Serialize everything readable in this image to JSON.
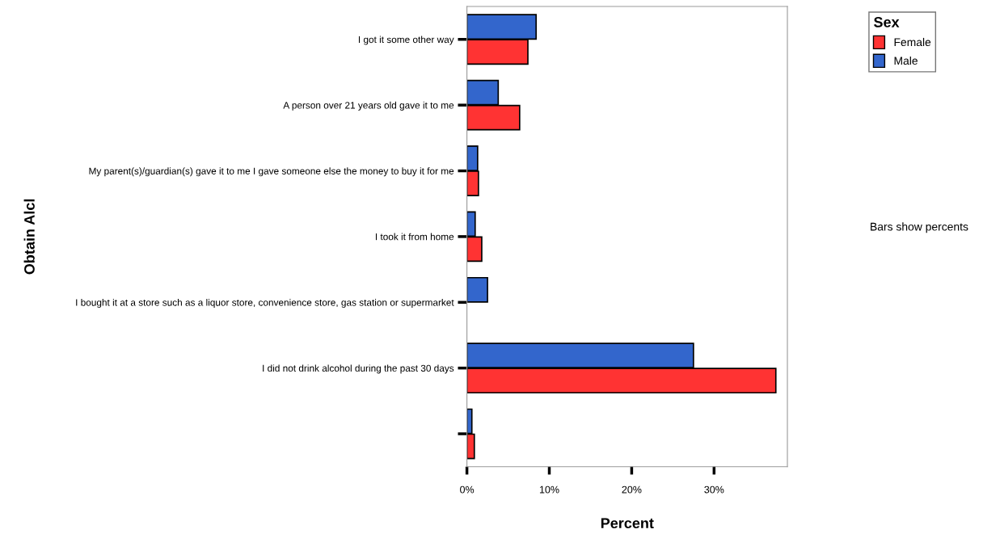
{
  "chart_data": {
    "type": "bar",
    "orientation": "horizontal",
    "categories": [
      "I got it some other way",
      "A person over 21 years old gave it to me",
      "My parent(s)/guardian(s) gave it to me I gave someone else the money to buy it for me",
      "I took it from home",
      "I bought it at a store such as a liquor store, convenience store, gas station or supermarket",
      "I did not drink alcohol during the past 30 days",
      null
    ],
    "series": [
      {
        "name": "Female",
        "color": "#ff3333",
        "values": [
          7.4,
          6.4,
          1.4,
          1.8,
          null,
          37.5,
          0.9
        ]
      },
      {
        "name": "Male",
        "color": "#3366cc",
        "values": [
          8.4,
          3.8,
          1.3,
          1.0,
          2.5,
          27.5,
          0.6
        ]
      }
    ],
    "xlabel": "Percent",
    "ylabel": "Obtain Alcl",
    "legend_title": "Sex",
    "legend": "top right",
    "xlim": [
      0,
      38.9
    ],
    "xticks": [
      {
        "value": 0,
        "label": "0%"
      },
      {
        "value": 10,
        "label": "10%"
      },
      {
        "value": 20,
        "label": "20%"
      },
      {
        "value": 30,
        "label": "30%"
      }
    ],
    "annotations": [
      "Bars show percents"
    ],
    "grid": false
  }
}
